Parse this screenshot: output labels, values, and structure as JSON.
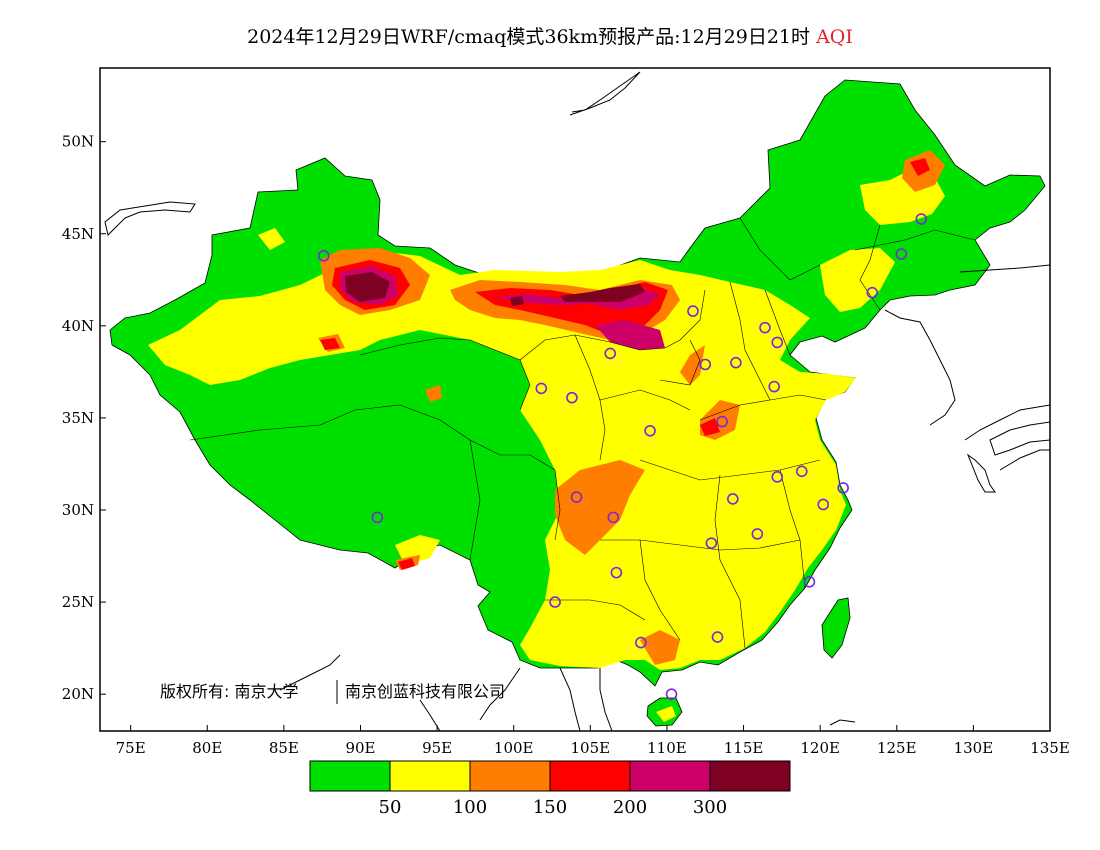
{
  "title": {
    "main": "2024年12月29日WRF/cmaq模式36km预报产品:12月29日21时",
    "variable": "AQI"
  },
  "axes": {
    "lat_labels": [
      "50N",
      "45N",
      "40N",
      "35N",
      "30N",
      "25N",
      "20N"
    ],
    "lat_values": [
      50,
      45,
      40,
      35,
      30,
      25,
      20
    ],
    "lon_labels": [
      "75E",
      "80E",
      "85E",
      "90E",
      "95E",
      "100E",
      "105E",
      "110E",
      "115E",
      "120E",
      "125E",
      "130E",
      "135E"
    ],
    "lon_values": [
      75,
      80,
      85,
      90,
      95,
      100,
      105,
      110,
      115,
      120,
      125,
      130,
      135
    ],
    "lon_range": [
      73,
      135
    ],
    "lat_range": [
      18,
      54
    ]
  },
  "legend": {
    "colors": [
      "#00e000",
      "#ffff00",
      "#ff7e00",
      "#ff0000",
      "#cc0066",
      "#7e0023"
    ],
    "labels": [
      "50",
      "100",
      "150",
      "200",
      "300"
    ]
  },
  "copyright": {
    "left": "版权所有: 南京大学",
    "right": "南京创蓝科技有限公司"
  },
  "stations": [
    [
      87.6,
      43.8
    ],
    [
      91.1,
      29.6
    ],
    [
      101.8,
      36.6
    ],
    [
      103.8,
      36.1
    ],
    [
      106.3,
      38.5
    ],
    [
      106.7,
      26.6
    ],
    [
      104.1,
      30.7
    ],
    [
      106.5,
      29.6
    ],
    [
      102.7,
      25.0
    ],
    [
      108.3,
      22.8
    ],
    [
      110.3,
      20.0
    ],
    [
      113.3,
      23.1
    ],
    [
      112.9,
      28.2
    ],
    [
      114.3,
      30.6
    ],
    [
      115.9,
      28.7
    ],
    [
      117.2,
      31.8
    ],
    [
      118.8,
      32.1
    ],
    [
      120.2,
      30.3
    ],
    [
      119.3,
      26.1
    ],
    [
      121.5,
      31.2
    ],
    [
      117.0,
      36.7
    ],
    [
      113.6,
      34.8
    ],
    [
      108.9,
      34.3
    ],
    [
      111.7,
      40.8
    ],
    [
      112.5,
      37.9
    ],
    [
      114.5,
      38.0
    ],
    [
      116.4,
      39.9
    ],
    [
      117.2,
      39.1
    ],
    [
      123.4,
      41.8
    ],
    [
      125.3,
      43.9
    ],
    [
      126.6,
      45.8
    ]
  ]
}
